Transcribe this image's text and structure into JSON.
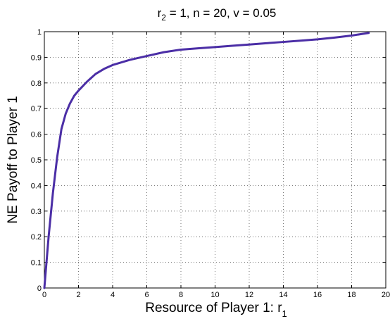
{
  "chart_data": {
    "type": "line",
    "title": "r2 = 1, n = 20, v = 0.05",
    "title_parts": {
      "main": "r",
      "sub": "2",
      "rest": " = 1, n = 20, v = 0.05"
    },
    "xlabel": "Resource of Player 1: r1",
    "xlabel_parts": {
      "main": "Resource of Player 1: r",
      "sub": "1"
    },
    "ylabel": "NE Payoff to Player 1",
    "xlim": [
      0,
      20
    ],
    "ylim": [
      0,
      1
    ],
    "grid": true,
    "grid_style": "dotted",
    "x_ticks": [
      "0",
      "2",
      "4",
      "6",
      "8",
      "10",
      "12",
      "14",
      "16",
      "18",
      "20"
    ],
    "y_ticks": [
      "0",
      "0.1",
      "0.2",
      "0.3",
      "0.4",
      "0.5",
      "0.6",
      "0.7",
      "0.8",
      "0.9",
      "1"
    ],
    "series": [
      {
        "color": "#4b2ea6",
        "x": [
          0,
          0.25,
          0.5,
          0.75,
          1.0,
          1.25,
          1.5,
          1.75,
          2.0,
          2.5,
          3.0,
          3.5,
          4.0,
          4.5,
          5.0,
          6.0,
          7.0,
          8.0,
          9.0,
          10.0,
          11.0,
          12.0,
          13.0,
          14.0,
          15.0,
          16.0,
          17.0,
          18.0,
          19.0
        ],
        "y": [
          0.0,
          0.2,
          0.37,
          0.51,
          0.62,
          0.68,
          0.72,
          0.75,
          0.77,
          0.805,
          0.835,
          0.855,
          0.87,
          0.88,
          0.89,
          0.905,
          0.92,
          0.93,
          0.935,
          0.94,
          0.945,
          0.95,
          0.955,
          0.96,
          0.965,
          0.97,
          0.977,
          0.985,
          0.995
        ]
      }
    ]
  }
}
